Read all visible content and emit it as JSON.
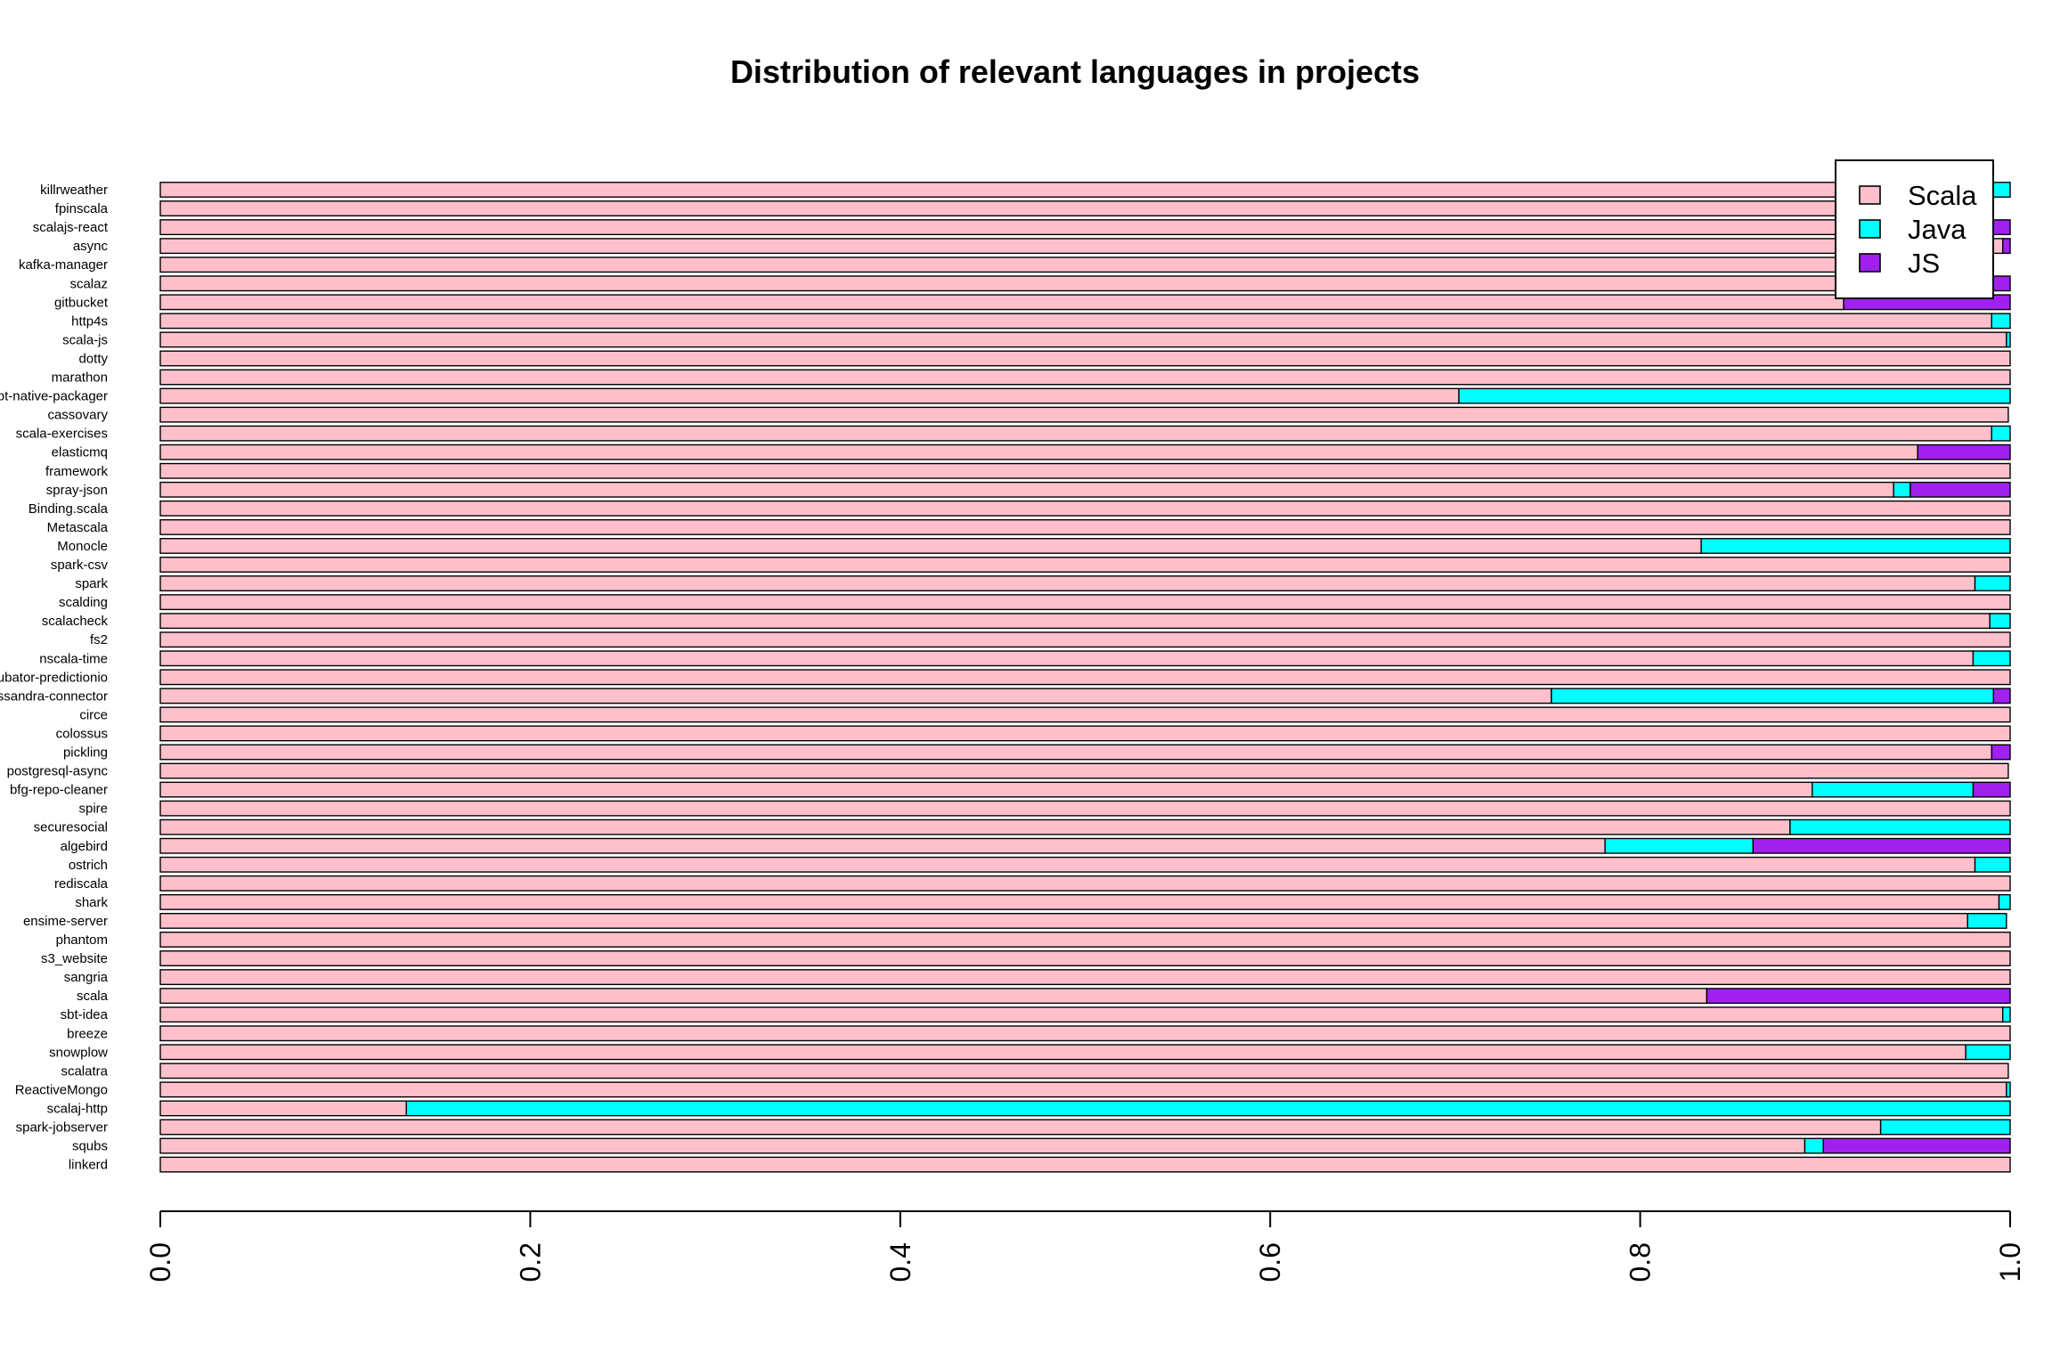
{
  "chart_data": {
    "type": "bar",
    "orientation": "horizontal",
    "stacked": true,
    "title": "Distribution of relevant languages in projects",
    "xlabel": "",
    "ylabel": "",
    "xlim": [
      0,
      1
    ],
    "x_ticks": [
      "0.0",
      "0.2",
      "0.4",
      "0.6",
      "0.8",
      "1.0"
    ],
    "legend_position": "top-right",
    "categories": [
      "killrweather",
      "fpinscala",
      "scalajs-react",
      "async",
      "kafka-manager",
      "scalaz",
      "gitbucket",
      "http4s",
      "scala-js",
      "dotty",
      "marathon",
      "sbt-native-packager",
      "cassovary",
      "scala-exercises",
      "elasticmq",
      "framework",
      "spray-json",
      "Binding.scala",
      "Metascala",
      "Monocle",
      "spark-csv",
      "spark",
      "scalding",
      "scalacheck",
      "fs2",
      "nscala-time",
      "incubator-predictionio",
      "spark-cassandra-connector",
      "circe",
      "colossus",
      "pickling",
      "postgresql-async",
      "bfg-repo-cleaner",
      "spire",
      "securesocial",
      "algebird",
      "ostrich",
      "rediscala",
      "shark",
      "ensime-server",
      "phantom",
      "s3_website",
      "sangria",
      "scala",
      "sbt-idea",
      "breeze",
      "snowplow",
      "scalatra",
      "ReactiveMongo",
      "scalaj-http",
      "spark-jobserver",
      "squbs",
      "linkerd"
    ],
    "series": [
      {
        "name": "Scala",
        "color": "#ffc0cb",
        "values": [
          0.99,
          0.99,
          0.99,
          0.996,
          0.99,
          0.99,
          0.91,
          0.99,
          0.998,
          1.0,
          1.0,
          0.702,
          0.999,
          0.99,
          0.95,
          1.0,
          0.937,
          1.0,
          1.0,
          0.833,
          1.0,
          0.981,
          1.0,
          0.989,
          1.0,
          0.98,
          1.0,
          0.752,
          1.0,
          1.0,
          0.99,
          0.999,
          0.893,
          1.0,
          0.881,
          0.781,
          0.981,
          1.0,
          0.994,
          0.977,
          1.0,
          1.0,
          1.0,
          0.836,
          0.996,
          1.0,
          0.976,
          0.999,
          0.998,
          0.133,
          0.93,
          0.889,
          1.0
        ]
      },
      {
        "name": "Java",
        "color": "#00ffff",
        "values": [
          0.01,
          0.0,
          0.0,
          0.0,
          0.0,
          0.0,
          0.0,
          0.01,
          0.002,
          0.0,
          0.0,
          0.298,
          0.0,
          0.01,
          0.0,
          0.0,
          0.009,
          0.0,
          0.0,
          0.167,
          0.0,
          0.019,
          0.0,
          0.011,
          0.0,
          0.02,
          0.0,
          0.239,
          0.0,
          0.0,
          0.0,
          0.0,
          0.087,
          0.0,
          0.119,
          0.08,
          0.019,
          0.0,
          0.006,
          0.021,
          0.0,
          0.0,
          0.0,
          0.0,
          0.004,
          0.0,
          0.024,
          0.0,
          0.002,
          0.867,
          0.07,
          0.01,
          0.0
        ]
      },
      {
        "name": "JS",
        "color": "#a020f0",
        "values": [
          0.0,
          0.0,
          0.01,
          0.004,
          0.0,
          0.01,
          0.09,
          0.0,
          0.0,
          0.0,
          0.0,
          0.0,
          0.0,
          0.0,
          0.05,
          0.0,
          0.054,
          0.0,
          0.0,
          0.0,
          0.0,
          0.0,
          0.0,
          0.0,
          0.0,
          0.0,
          0.0,
          0.009,
          0.0,
          0.0,
          0.01,
          0.0,
          0.02,
          0.0,
          0.0,
          0.139,
          0.0,
          0.0,
          0.0,
          0.0,
          0.0,
          0.0,
          0.0,
          0.164,
          0.0,
          0.0,
          0.0,
          0.0,
          0.0,
          0.0,
          0.0,
          0.101,
          0.0
        ]
      }
    ]
  }
}
